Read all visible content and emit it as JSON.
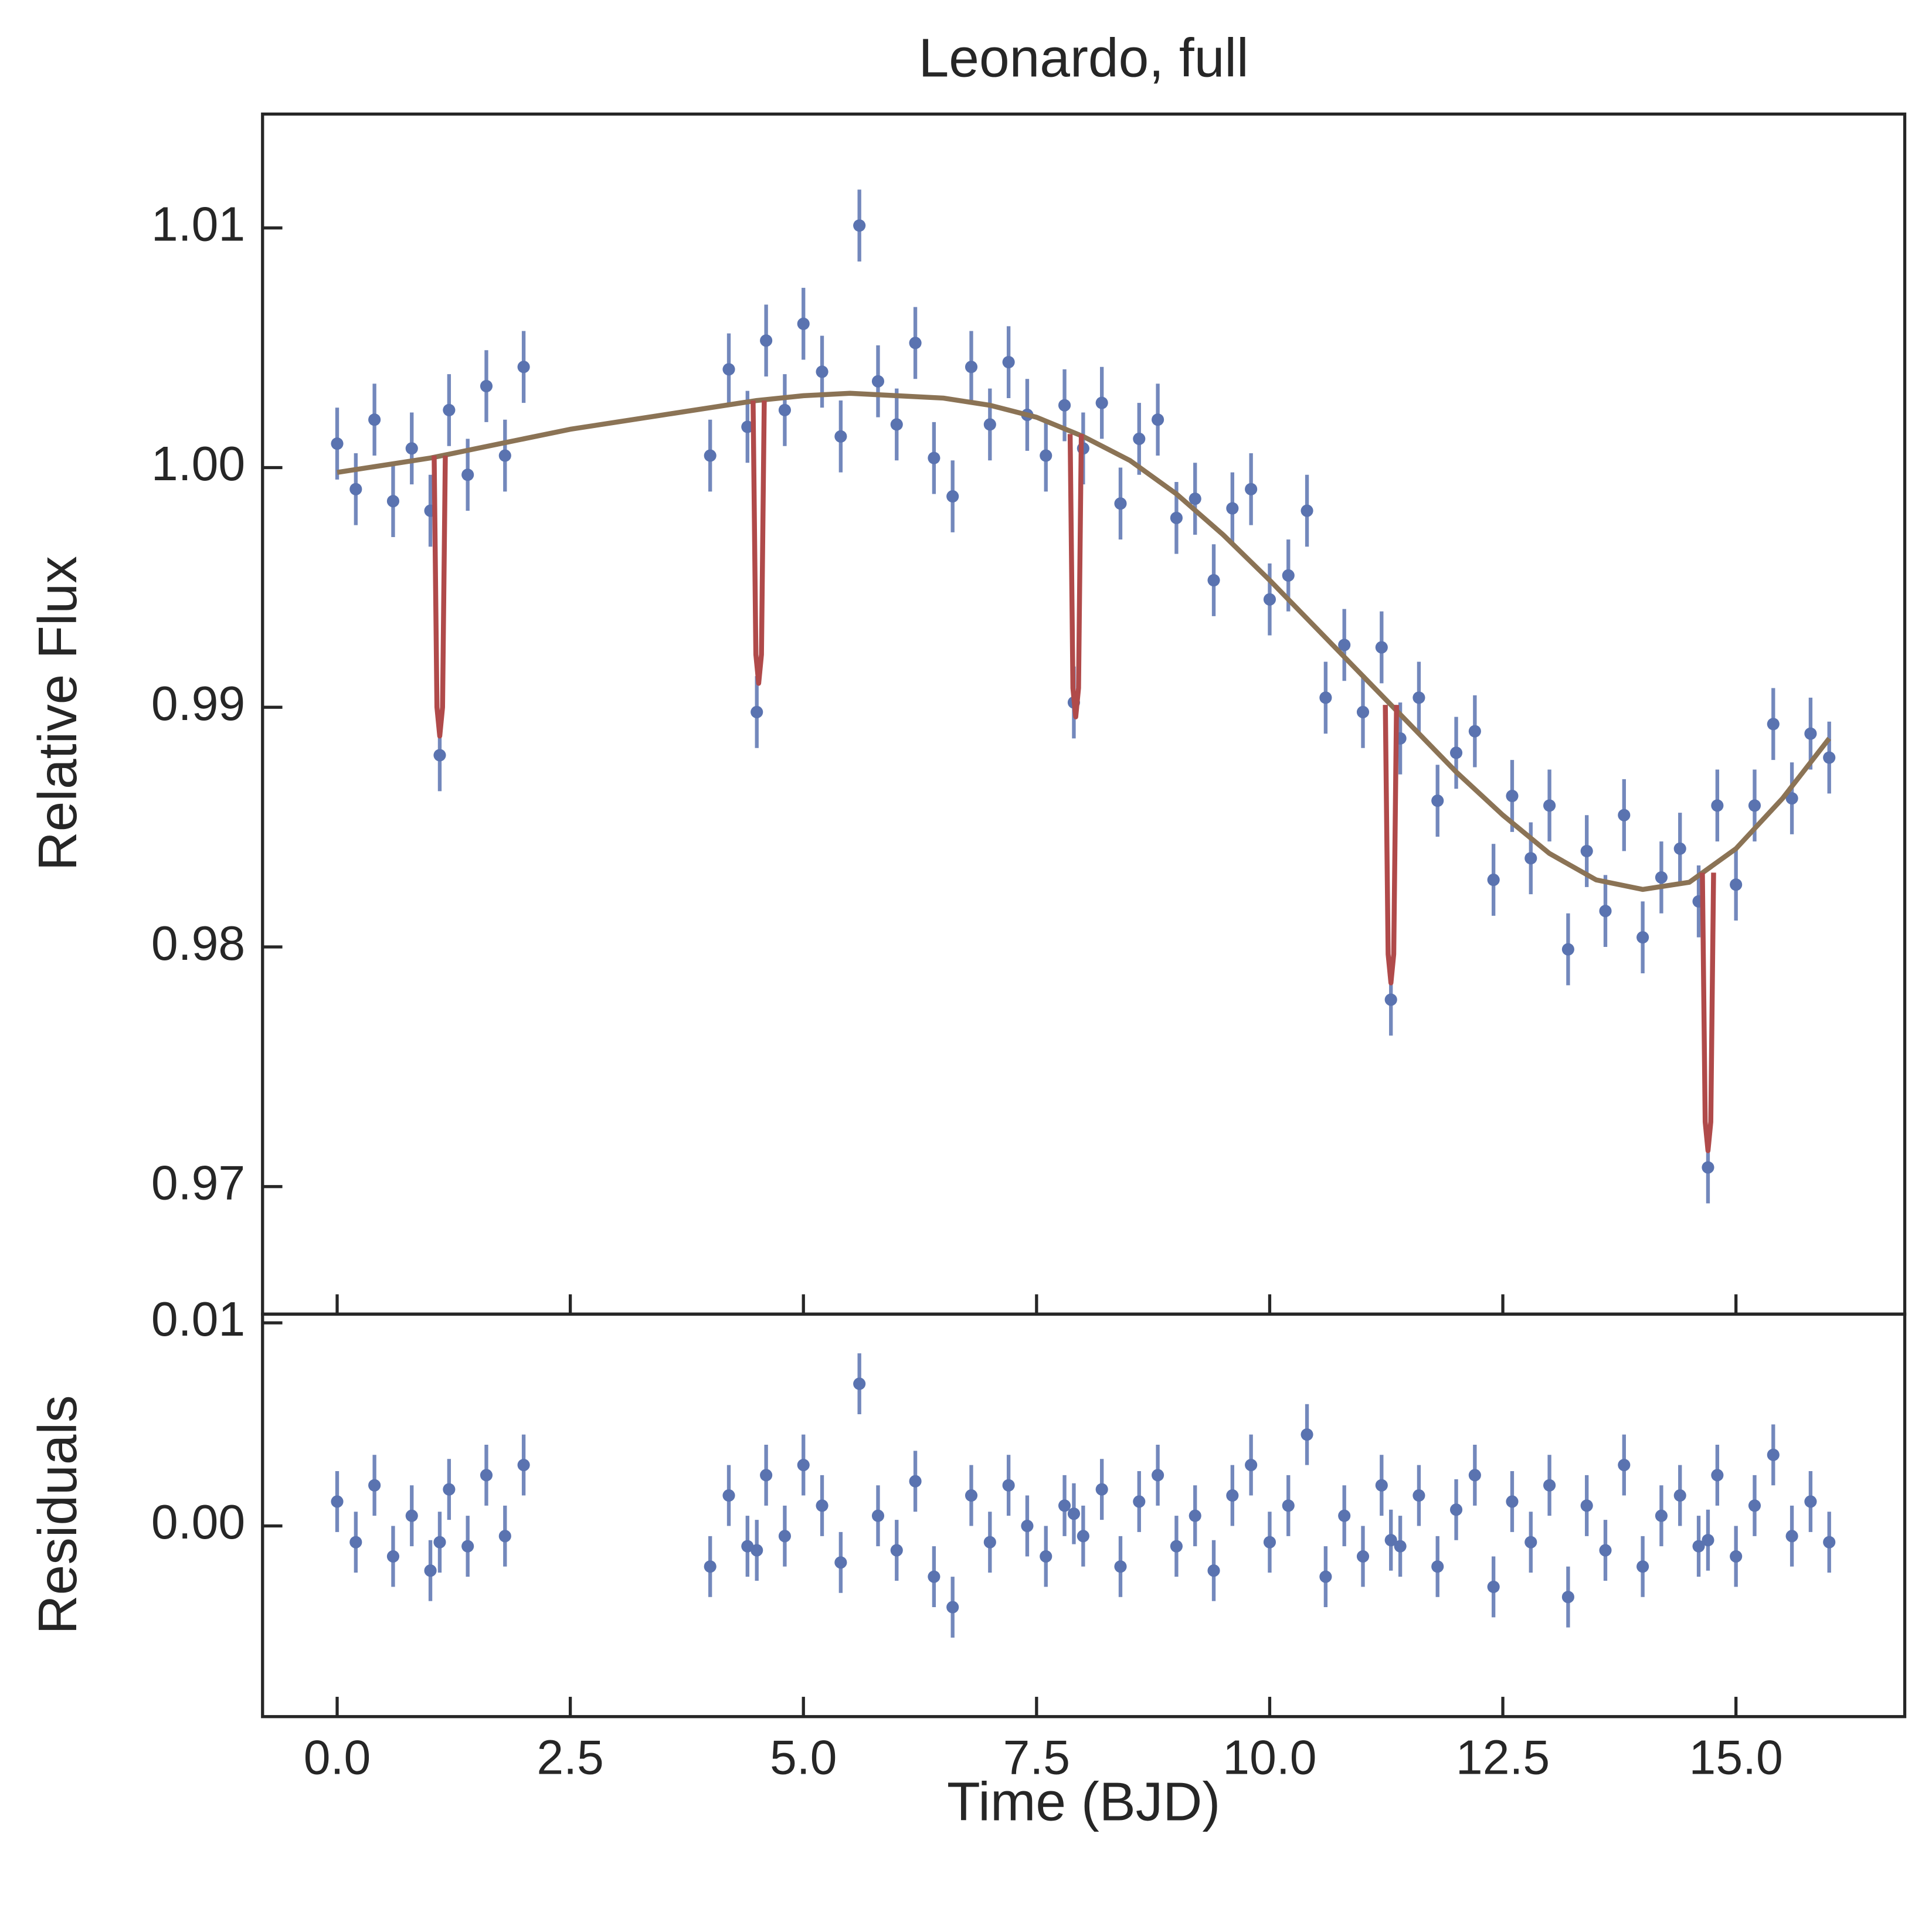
{
  "chart_data": [
    {
      "type": "errorbar",
      "title": "Leonardo, full",
      "ylabel": "Relative Flux",
      "xlim": [
        -0.8,
        16.81
      ],
      "ylim": [
        0.96468,
        1.01475
      ],
      "xticks": [
        0,
        2.5,
        5,
        7.5,
        10,
        12.5,
        15
      ],
      "show_xticklabels": false,
      "yticks": [
        0.97,
        0.98,
        0.99,
        {
          "value": 1,
          "label": "1.00"
        },
        1.01
      ],
      "series": [
        {
          "type": "errorbar",
          "color": "#5a73b0",
          "yerr": 0.0015,
          "x": [
            0,
            0.2,
            0.4,
            0.6,
            0.8,
            1.0,
            1.1,
            1.2,
            1.4,
            1.6,
            1.8,
            2.0,
            4.0,
            4.2,
            4.4,
            4.5,
            4.6,
            4.8,
            5.0,
            5.2,
            5.4,
            5.6,
            5.8,
            6.0,
            6.2,
            6.4,
            6.6,
            6.8,
            7.0,
            7.2,
            7.4,
            7.6,
            7.8,
            7.9,
            8.0,
            8.2,
            8.4,
            8.6,
            8.8,
            9.0,
            9.2,
            9.4,
            9.6,
            9.8,
            10.0,
            10.2,
            10.4,
            10.6,
            10.8,
            11.0,
            11.2,
            11.3,
            11.4,
            11.6,
            11.8,
            12.0,
            12.2,
            12.4,
            12.6,
            12.8,
            13.0,
            13.2,
            13.4,
            13.6,
            13.8,
            14.0,
            14.2,
            14.4,
            14.6,
            14.7,
            14.8,
            15.0,
            15.2,
            15.4,
            15.6,
            15.8,
            16.0
          ],
          "values": [
            1.001,
            0.9991,
            1.002,
            0.9986,
            1.0008,
            0.9982,
            0.988,
            1.0024,
            0.9997,
            1.0034,
            1.0005,
            1.0042,
            1.0005,
            1.0041,
            1.0017,
            0.9898,
            1.0053,
            1.0024,
            1.006,
            1.004,
            1.0013,
            1.0101,
            1.0036,
            1.0018,
            1.0052,
            1.0004,
            0.9988,
            1.0042,
            1.0018,
            1.0044,
            1.0022,
            1.0005,
            1.0026,
            0.9902,
            1.0008,
            1.0027,
            0.9985,
            1.0012,
            1.002,
            0.9979,
            0.9987,
            0.9953,
            0.9983,
            0.9991,
            0.9945,
            0.9955,
            0.9982,
            0.9904,
            0.9926,
            0.9898,
            0.9925,
            0.9778,
            0.9887,
            0.9904,
            0.9861,
            0.9881,
            0.989,
            0.9828,
            0.9863,
            0.9837,
            0.9859,
            0.9799,
            0.984,
            0.9815,
            0.9855,
            0.9804,
            0.9829,
            0.9841,
            0.9819,
            0.9708,
            0.9859,
            0.9826,
            0.9859,
            0.9893,
            0.9862,
            0.9889,
            0.9879
          ]
        },
        {
          "type": "line",
          "color": "#8b7355",
          "x": [
            0,
            0.5,
            1,
            1.5,
            2,
            2.5,
            3,
            3.5,
            4,
            4.5,
            5,
            5.5,
            6,
            6.5,
            7,
            7.5,
            8,
            8.5,
            9,
            9.5,
            10,
            10.5,
            11,
            11.5,
            12,
            12.5,
            13,
            13.5,
            14,
            14.5,
            15,
            15.5,
            16
          ],
          "values": [
            0.9998,
            1.0001,
            1.0004,
            1.0008,
            1.0012,
            1.0016,
            1.0019,
            1.0022,
            1.0025,
            1.0028,
            1.003,
            1.0031,
            1.003,
            1.0029,
            1.0026,
            1.0021,
            1.0013,
            1.0003,
            0.9989,
            0.9972,
            0.9953,
            0.9933,
            0.9913,
            0.9893,
            0.9873,
            0.9855,
            0.9839,
            0.9828,
            0.9824,
            0.9827,
            0.9841,
            0.9862,
            0.9887
          ]
        },
        {
          "type": "line",
          "color": "#b04a4a",
          "x": [
            1.04,
            1.07,
            1.1,
            1.13,
            1.16,
            1.3,
            4.46,
            4.49,
            4.52,
            4.55,
            4.58,
            5.0,
            7.86,
            7.89,
            7.92,
            7.95,
            7.98,
            9.0,
            11.24,
            11.27,
            11.3,
            11.33,
            11.36,
            12.0,
            14.64,
            14.67,
            14.7,
            14.73,
            14.76
          ],
          "values": [
            1.0005,
            0.99,
            0.9888,
            0.99,
            1.0005,
            null,
            1.0028,
            0.9922,
            0.991,
            0.9922,
            1.0028,
            null,
            1.0014,
            0.9908,
            0.9896,
            0.9908,
            1.0014,
            null,
            0.9901,
            0.9797,
            0.9785,
            0.9797,
            0.9901,
            null,
            0.9831,
            0.9727,
            0.9715,
            0.9727,
            0.9831
          ]
        }
      ]
    },
    {
      "type": "errorbar",
      "ylabel": "Residuals",
      "xlabel": "Time (BJD)",
      "xlim": [
        -0.8,
        16.81
      ],
      "ylim": [
        -0.00939,
        0.01043
      ],
      "xticks": [
        {
          "value": 0,
          "label": "0.0"
        },
        2.5,
        {
          "value": 5,
          "label": "5.0"
        },
        7.5,
        {
          "value": 10,
          "label": "10.0"
        },
        12.5,
        {
          "value": 15,
          "label": "15.0"
        }
      ],
      "yticks": [
        {
          "value": 0,
          "label": "0.00"
        },
        0.01
      ],
      "series": [
        {
          "type": "errorbar",
          "color": "#5a73b0",
          "yerr": 0.0015,
          "x": [
            0,
            0.2,
            0.4,
            0.6,
            0.8,
            1.0,
            1.1,
            1.2,
            1.4,
            1.6,
            1.8,
            2.0,
            4.0,
            4.2,
            4.4,
            4.5,
            4.6,
            4.8,
            5.0,
            5.2,
            5.4,
            5.6,
            5.8,
            6.0,
            6.2,
            6.4,
            6.6,
            6.8,
            7.0,
            7.2,
            7.4,
            7.6,
            7.8,
            7.9,
            8.0,
            8.2,
            8.4,
            8.6,
            8.8,
            9.0,
            9.2,
            9.4,
            9.6,
            9.8,
            10.0,
            10.2,
            10.4,
            10.6,
            10.8,
            11.0,
            11.2,
            11.3,
            11.4,
            11.6,
            11.8,
            12.0,
            12.2,
            12.4,
            12.6,
            12.8,
            13.0,
            13.2,
            13.4,
            13.6,
            13.8,
            14.0,
            14.2,
            14.4,
            14.6,
            14.7,
            14.8,
            15.0,
            15.2,
            15.4,
            15.6,
            15.8,
            16.0
          ],
          "values": [
            0.0012,
            -0.0008,
            0.002,
            -0.0015,
            0.0005,
            -0.0022,
            -0.0008,
            0.0018,
            -0.001,
            0.0025,
            -0.0005,
            0.003,
            -0.002,
            0.0015,
            -0.001,
            -0.0012,
            0.0025,
            -0.0005,
            0.003,
            0.001,
            -0.0018,
            0.007,
            0.0005,
            -0.0012,
            0.0022,
            -0.0025,
            -0.004,
            0.0015,
            -0.0008,
            0.002,
            0,
            -0.0015,
            0.001,
            0.0006,
            -0.0005,
            0.0018,
            -0.002,
            0.0012,
            0.0025,
            -0.001,
            0.0005,
            -0.0022,
            0.0015,
            0.003,
            -0.0008,
            0.001,
            0.0045,
            -0.0025,
            0.0005,
            -0.0015,
            0.002,
            -0.0007,
            -0.001,
            0.0015,
            -0.002,
            0.0008,
            0.0025,
            -0.003,
            0.0012,
            -0.0008,
            0.002,
            -0.0035,
            0.001,
            -0.0012,
            0.003,
            -0.002,
            0.0005,
            0.0015,
            -0.001,
            -0.0007,
            0.0025,
            -0.0015,
            0.001,
            0.0035,
            -0.0005,
            0.0012,
            -0.0008
          ]
        }
      ]
    }
  ]
}
